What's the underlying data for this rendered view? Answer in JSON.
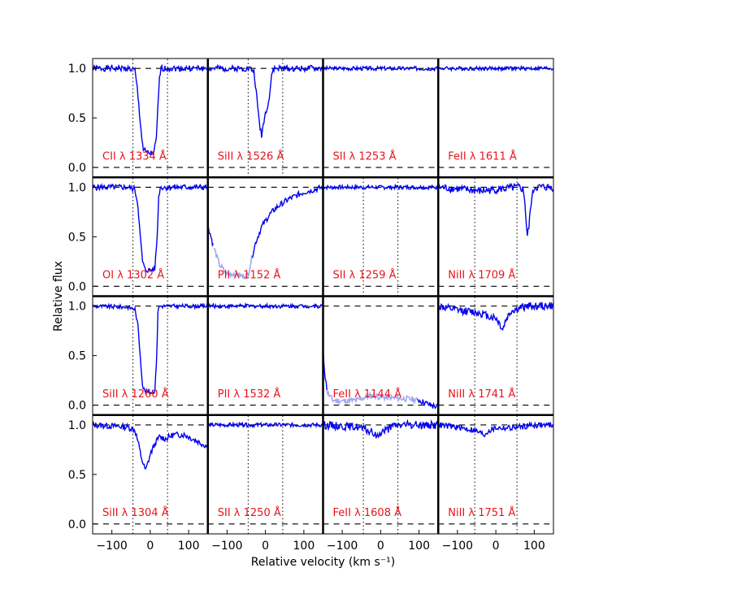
{
  "chart_data": {
    "type": "line",
    "xlabel": "Relative velocity (km s⁻¹)",
    "ylabel": "Relative flux",
    "xlim": [
      -150,
      150
    ],
    "ylim": [
      -0.1,
      1.1
    ],
    "xticks": [
      -100,
      0,
      100
    ],
    "xtick_labels": [
      "−100",
      "0",
      "100"
    ],
    "yticks": [
      0.0,
      0.5,
      1.0
    ],
    "ytick_labels": [
      "0.0",
      "0.5",
      "1.0"
    ],
    "grid": false,
    "line_color": "#0000ee",
    "masked_color": "#a0a8f0",
    "label_color": "#e8141c",
    "panels": [
      {
        "label": "CII λ 1334 Å",
        "vmin": -45,
        "vmax": 45,
        "profile": [
          [
            -150,
            1
          ],
          [
            -60,
            1
          ],
          [
            -40,
            0.98
          ],
          [
            -34,
            0.8
          ],
          [
            -28,
            0.55
          ],
          [
            -22,
            0.3
          ],
          [
            -18,
            0.18
          ],
          [
            -10,
            0.15
          ],
          [
            0,
            0.14
          ],
          [
            10,
            0.15
          ],
          [
            16,
            0.3
          ],
          [
            20,
            0.6
          ],
          [
            24,
            0.9
          ],
          [
            28,
            1
          ],
          [
            150,
            1
          ]
        ],
        "noise": 0.03,
        "seed": 1
      },
      {
        "label": "SiII λ 1526 Å",
        "vmin": -45,
        "vmax": 45,
        "profile": [
          [
            -150,
            1
          ],
          [
            -40,
            1
          ],
          [
            -30,
            0.97
          ],
          [
            -25,
            0.8
          ],
          [
            -20,
            0.6
          ],
          [
            -14,
            0.4
          ],
          [
            -10,
            0.33
          ],
          [
            -5,
            0.45
          ],
          [
            0,
            0.55
          ],
          [
            5,
            0.62
          ],
          [
            10,
            0.7
          ],
          [
            14,
            0.85
          ],
          [
            18,
            0.97
          ],
          [
            24,
            1
          ],
          [
            150,
            1
          ]
        ],
        "noise": 0.03,
        "seed": 2
      },
      {
        "label": "SII λ 1253 Å",
        "profile": [
          [
            -150,
            1
          ],
          [
            150,
            1
          ]
        ],
        "noise": 0.02,
        "seed": 3
      },
      {
        "label": "FeII λ 1611 Å",
        "profile": [
          [
            -150,
            1
          ],
          [
            150,
            1
          ]
        ],
        "noise": 0.02,
        "seed": 4
      },
      {
        "label": "OI λ 1302 Å",
        "vmin": -45,
        "vmax": 45,
        "profile": [
          [
            -150,
            1
          ],
          [
            -60,
            1
          ],
          [
            -40,
            0.98
          ],
          [
            -32,
            0.82
          ],
          [
            -26,
            0.5
          ],
          [
            -20,
            0.25
          ],
          [
            -14,
            0.17
          ],
          [
            0,
            0.16
          ],
          [
            12,
            0.18
          ],
          [
            18,
            0.5
          ],
          [
            22,
            0.9
          ],
          [
            26,
            1
          ],
          [
            150,
            1
          ]
        ],
        "noise": 0.03,
        "seed": 5
      },
      {
        "label": "PII λ 1152 Å",
        "profile": [
          [
            -150,
            0.62
          ],
          [
            -135,
            0.4
          ],
          [
            -120,
            0.22
          ],
          [
            -100,
            0.12
          ],
          [
            -80,
            0.13
          ],
          [
            -60,
            0.1
          ],
          [
            -45,
            0.12
          ],
          [
            -35,
            0.3
          ],
          [
            -25,
            0.45
          ],
          [
            -10,
            0.6
          ],
          [
            10,
            0.72
          ],
          [
            30,
            0.8
          ],
          [
            60,
            0.88
          ],
          [
            100,
            0.95
          ],
          [
            150,
            1
          ]
        ],
        "noise": 0.03,
        "seed": 6,
        "mask": [
          -135,
          -35
        ]
      },
      {
        "label": "SII λ 1259 Å",
        "vmin": -45,
        "vmax": 45,
        "profile": [
          [
            -150,
            1
          ],
          [
            150,
            1
          ]
        ],
        "noise": 0.02,
        "seed": 7
      },
      {
        "label": "NiII λ 1709 Å",
        "vmin": -55,
        "vmax": 55,
        "profile": [
          [
            -150,
            1
          ],
          [
            -60,
            0.97
          ],
          [
            -40,
            0.96
          ],
          [
            -20,
            0.97
          ],
          [
            60,
            1
          ],
          [
            70,
            0.98
          ],
          [
            75,
            0.9
          ],
          [
            78,
            0.7
          ],
          [
            82,
            0.5
          ],
          [
            86,
            0.6
          ],
          [
            92,
            0.85
          ],
          [
            100,
            1
          ],
          [
            150,
            1
          ]
        ],
        "noise": 0.04,
        "seed": 8
      },
      {
        "label": "SiII λ 1260 Å",
        "vmin": -45,
        "vmax": 45,
        "profile": [
          [
            -150,
            1
          ],
          [
            -60,
            0.99
          ],
          [
            -40,
            0.97
          ],
          [
            -32,
            0.8
          ],
          [
            -26,
            0.5
          ],
          [
            -20,
            0.2
          ],
          [
            -14,
            0.14
          ],
          [
            0,
            0.13
          ],
          [
            12,
            0.14
          ],
          [
            17,
            0.5
          ],
          [
            20,
            0.95
          ],
          [
            24,
            1
          ],
          [
            150,
            1
          ]
        ],
        "noise": 0.02,
        "seed": 9
      },
      {
        "label": "PII λ 1532 Å",
        "profile": [
          [
            -150,
            1
          ],
          [
            150,
            1
          ]
        ],
        "noise": 0.02,
        "seed": 10
      },
      {
        "label": "FeII λ 1144 Å",
        "profile": [
          [
            -150,
            0.55
          ],
          [
            -145,
            0.3
          ],
          [
            -138,
            0.12
          ],
          [
            -125,
            0.05
          ],
          [
            -100,
            0.04
          ],
          [
            -60,
            0.05
          ],
          [
            -40,
            0.08
          ],
          [
            -20,
            0.1
          ],
          [
            0,
            0.08
          ],
          [
            40,
            0.07
          ],
          [
            80,
            0.06
          ],
          [
            100,
            0.05
          ],
          [
            130,
            0.0
          ],
          [
            150,
            -0.02
          ]
        ],
        "noise": 0.03,
        "seed": 11,
        "mask": [
          -140,
          95
        ]
      },
      {
        "label": "NiII λ 1741 Å",
        "vmin": -55,
        "vmax": 55,
        "profile": [
          [
            -150,
            1
          ],
          [
            -120,
            0.97
          ],
          [
            -80,
            0.95
          ],
          [
            -40,
            0.93
          ],
          [
            -20,
            0.9
          ],
          [
            0,
            0.88
          ],
          [
            10,
            0.82
          ],
          [
            18,
            0.76
          ],
          [
            25,
            0.85
          ],
          [
            40,
            0.95
          ],
          [
            80,
            1
          ],
          [
            150,
            1
          ]
        ],
        "noise": 0.04,
        "seed": 12
      },
      {
        "label": "SiII λ 1304 Å",
        "vmin": -45,
        "vmax": 45,
        "profile": [
          [
            -150,
            1
          ],
          [
            -60,
            0.98
          ],
          [
            -40,
            0.95
          ],
          [
            -30,
            0.8
          ],
          [
            -25,
            0.7
          ],
          [
            -18,
            0.6
          ],
          [
            -12,
            0.54
          ],
          [
            -6,
            0.62
          ],
          [
            0,
            0.7
          ],
          [
            6,
            0.76
          ],
          [
            14,
            0.82
          ],
          [
            24,
            0.88
          ],
          [
            40,
            0.86
          ],
          [
            60,
            0.9
          ],
          [
            90,
            0.9
          ],
          [
            110,
            0.86
          ],
          [
            130,
            0.82
          ],
          [
            150,
            0.78
          ]
        ],
        "noise": 0.03,
        "seed": 13
      },
      {
        "label": "SII λ 1250 Å",
        "vmin": -45,
        "vmax": 45,
        "profile": [
          [
            -150,
            1
          ],
          [
            150,
            1
          ]
        ],
        "noise": 0.02,
        "seed": 14
      },
      {
        "label": "FeII λ 1608 Å",
        "vmin": -45,
        "vmax": 45,
        "profile": [
          [
            -150,
            1
          ],
          [
            -60,
            0.98
          ],
          [
            -40,
            0.95
          ],
          [
            -25,
            0.93
          ],
          [
            -15,
            0.9
          ],
          [
            -8,
            0.88
          ],
          [
            0,
            0.93
          ],
          [
            20,
            0.96
          ],
          [
            40,
            1
          ],
          [
            150,
            1
          ]
        ],
        "noise": 0.04,
        "seed": 15
      },
      {
        "label": "NiII λ 1751 Å",
        "vmin": -55,
        "vmax": 55,
        "profile": [
          [
            -150,
            1
          ],
          [
            -90,
            0.97
          ],
          [
            -60,
            0.95
          ],
          [
            -40,
            0.92
          ],
          [
            -30,
            0.9
          ],
          [
            -20,
            0.94
          ],
          [
            0,
            0.97
          ],
          [
            40,
            0.97
          ],
          [
            100,
            1
          ],
          [
            150,
            1
          ]
        ],
        "noise": 0.03,
        "seed": 16
      }
    ]
  }
}
